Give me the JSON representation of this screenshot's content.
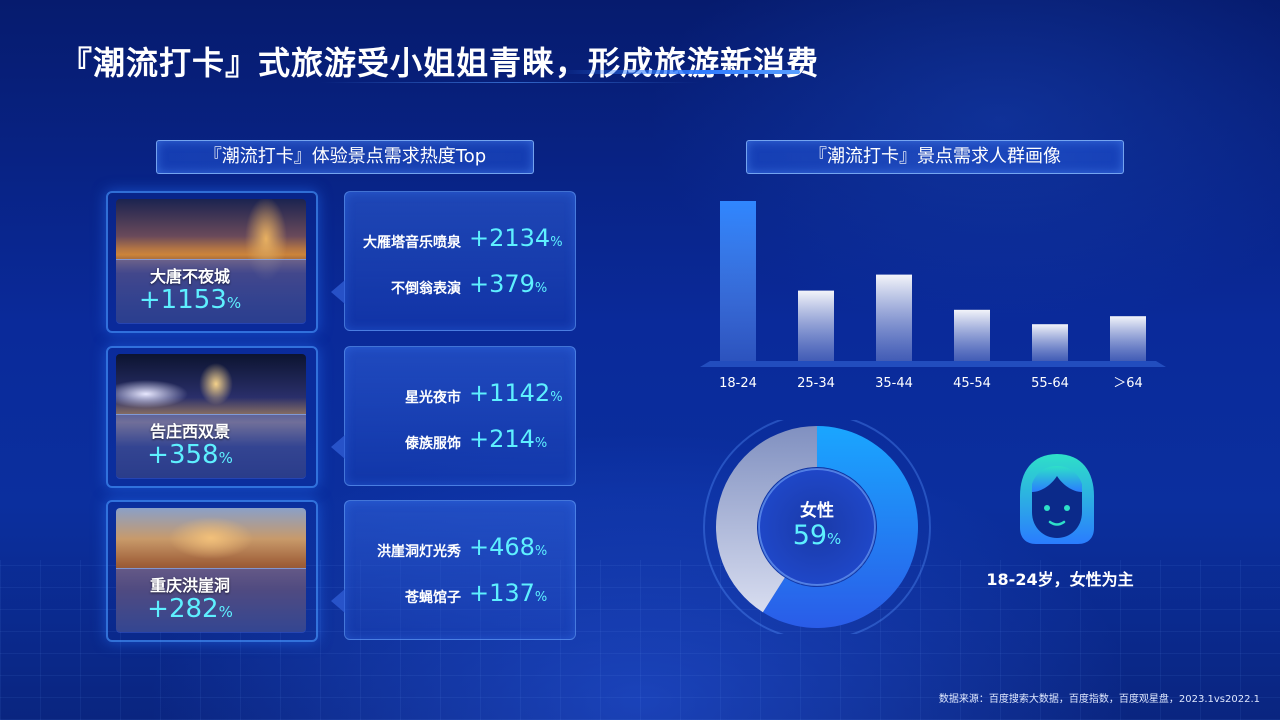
{
  "page": {
    "title": "『潮流打卡』式旅游受小姐姐青睐，形成旅游新消费",
    "left_section_title": "『潮流打卡』体验景点需求热度Top",
    "right_section_title": "『潮流打卡』景点需求人群画像",
    "footnote": "数据来源：百度搜索大数据，百度指数，百度观星盘，2023.1vs2022.1"
  },
  "spots": [
    {
      "name": "大唐不夜城",
      "pct": "+1153",
      "unit": "%",
      "items": [
        {
          "label": "大雁塔音乐喷泉",
          "pct": "+2134",
          "unit": "%"
        },
        {
          "label": "不倒翁表演",
          "pct": "+379",
          "unit": "%"
        }
      ]
    },
    {
      "name": "告庄西双景",
      "pct": "+358",
      "unit": "%",
      "items": [
        {
          "label": "星光夜市",
          "pct": "+1142",
          "unit": "%"
        },
        {
          "label": "傣族服饰",
          "pct": "+214",
          "unit": "%"
        }
      ]
    },
    {
      "name": "重庆洪崖洞",
      "pct": "+282",
      "unit": "%",
      "items": [
        {
          "label": "洪崖洞灯光秀",
          "pct": "+468",
          "unit": "%"
        },
        {
          "label": "苍蝇馆子",
          "pct": "+137",
          "unit": "%"
        }
      ]
    }
  ],
  "gender": {
    "label": "女性",
    "pct": "59",
    "unit": "%",
    "value": 59
  },
  "avatar": {
    "icon": "female-user-icon",
    "caption": "18-24岁，女性为主"
  },
  "colors": {
    "accent_cyan": "#5ef0ff",
    "highlight_bar": "#2f86ff",
    "title_bar": "#2f7bff"
  },
  "chart_data": {
    "type": "bar",
    "title": "",
    "xlabel": "",
    "ylabel": "",
    "categories": [
      "18-24",
      "25-34",
      "35-44",
      "45-54",
      "55-64",
      "＞64"
    ],
    "values": [
      100,
      44,
      54,
      32,
      23,
      28
    ],
    "highlight_index": 0,
    "ylim": [
      0,
      100
    ],
    "grid": false,
    "legend": "none"
  }
}
